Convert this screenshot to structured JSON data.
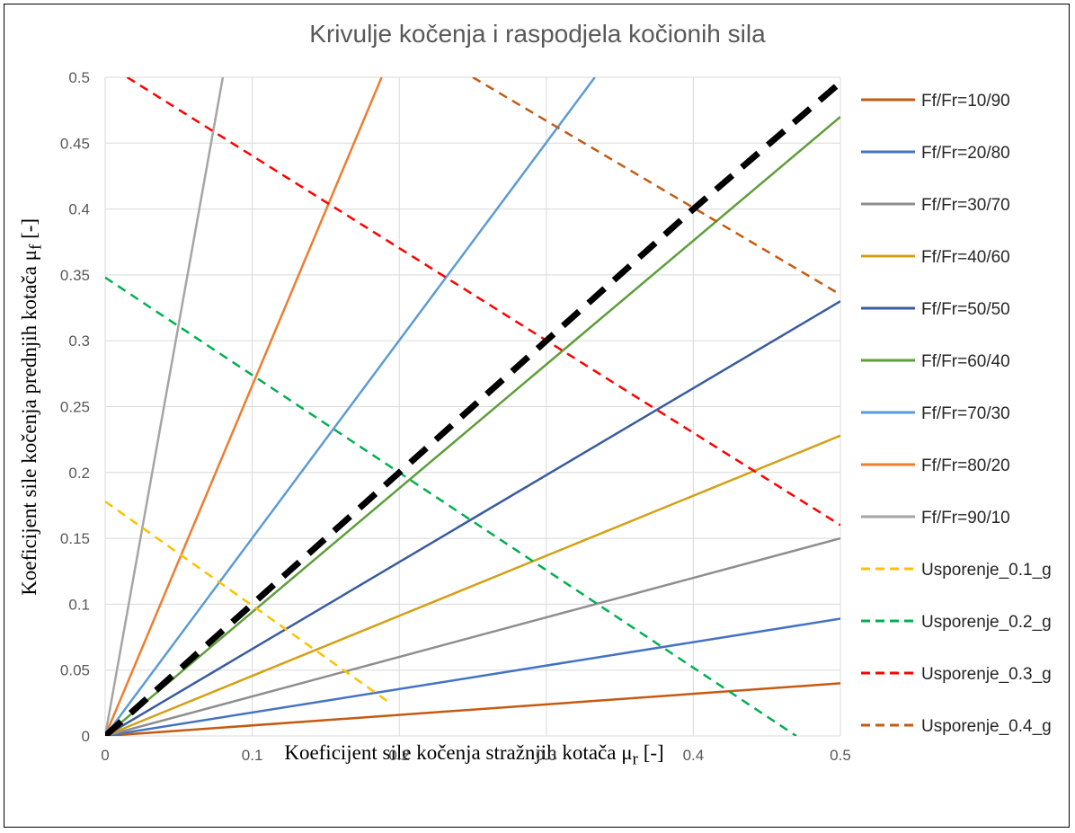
{
  "chart_data": {
    "type": "line",
    "title": "Krivulje kočenja i raspodjela kočionih sila",
    "xlabel_pre": "Koeficijent sile kočenja stražnjih kotača μ",
    "xlabel_sub": "r",
    "xlabel_post": " [-]",
    "ylabel_pre": "Koeficijent sile kočenja  prednjih kotača μ",
    "ylabel_sub": "f",
    "ylabel_post": " [-]",
    "xlim": [
      0,
      0.5
    ],
    "ylim": [
      0,
      0.5
    ],
    "x_ticks": [
      "0",
      "0.1",
      "0.2",
      "0.3",
      "0.4",
      "0.5"
    ],
    "y_ticks": [
      "0",
      "0.05",
      "0.1",
      "0.15",
      "0.2",
      "0.25",
      "0.3",
      "0.35",
      "0.4",
      "0.45",
      "0.5"
    ],
    "grid": true,
    "legend_position": "right",
    "series": [
      {
        "name": "Ff/Fr=10/90",
        "color": "#C55A11",
        "style": "solid",
        "points": [
          [
            0,
            0
          ],
          [
            0.5,
            0.04
          ]
        ]
      },
      {
        "name": "Ff/Fr=20/80",
        "color": "#4472C4",
        "style": "solid",
        "points": [
          [
            0,
            0
          ],
          [
            0.5,
            0.089
          ]
        ]
      },
      {
        "name": "Ff/Fr=30/70",
        "color": "#8E8E8E",
        "style": "solid",
        "points": [
          [
            0,
            0
          ],
          [
            0.5,
            0.15
          ]
        ]
      },
      {
        "name": "Ff/Fr=40/60",
        "color": "#D4A017",
        "style": "solid",
        "points": [
          [
            0,
            0
          ],
          [
            0.5,
            0.228
          ]
        ]
      },
      {
        "name": "Ff/Fr=50/50",
        "color": "#3A5BA0",
        "style": "solid",
        "points": [
          [
            0,
            0
          ],
          [
            0.5,
            0.33
          ]
        ]
      },
      {
        "name": "Ff/Fr=60/40",
        "color": "#5E9E3A",
        "style": "solid",
        "points": [
          [
            0,
            0
          ],
          [
            0.5,
            0.47
          ]
        ]
      },
      {
        "name": "Ff/Fr=70/30",
        "color": "#5B9BD5",
        "style": "solid",
        "points": [
          [
            0,
            0
          ],
          [
            0.333,
            0.5
          ]
        ]
      },
      {
        "name": "Ff/Fr=80/20",
        "color": "#ED7D31",
        "style": "solid",
        "points": [
          [
            0,
            0
          ],
          [
            0.188,
            0.5
          ]
        ]
      },
      {
        "name": "Ff/Fr=90/10",
        "color": "#A5A5A5",
        "style": "solid",
        "points": [
          [
            0,
            0
          ],
          [
            0.08,
            0.5
          ]
        ]
      },
      {
        "name": "Usporenje_0.1_g",
        "color": "#FFC000",
        "style": "dashed",
        "points": [
          [
            0,
            0.178
          ],
          [
            0.195,
            0.024
          ]
        ]
      },
      {
        "name": "Usporenje_0.2_g",
        "color": "#00B050",
        "style": "dashed",
        "points": [
          [
            0,
            0.348
          ],
          [
            0.47,
            0
          ]
        ]
      },
      {
        "name": "Usporenje_0.3_g",
        "color": "#FF0000",
        "style": "dashed",
        "points": [
          [
            0.015,
            0.5
          ],
          [
            0.5,
            0.16
          ]
        ]
      },
      {
        "name": "Usporenje_0.4_g",
        "color": "#C55A11",
        "style": "dashed",
        "points": [
          [
            0.25,
            0.5
          ],
          [
            0.5,
            0.335
          ]
        ]
      }
    ],
    "ideal_curve": {
      "color": "#000000",
      "style": "dashed-thick",
      "points": [
        [
          0,
          0
        ],
        [
          0.1,
          0.1
        ],
        [
          0.2,
          0.2
        ],
        [
          0.3,
          0.3
        ],
        [
          0.4,
          0.4
        ],
        [
          0.5,
          0.496
        ]
      ]
    }
  }
}
